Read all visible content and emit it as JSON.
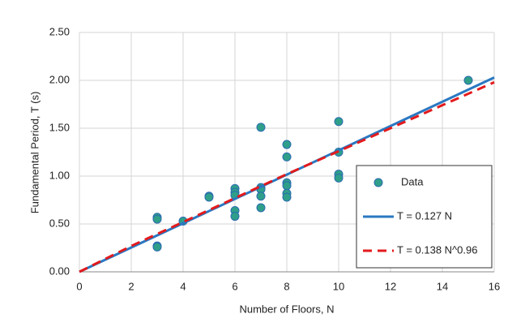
{
  "chart_data": {
    "type": "scatter",
    "xlabel": "Number of Floors, N",
    "ylabel": "Fundamental Period, T (s)",
    "xlim": [
      0,
      16
    ],
    "xticks": [
      0,
      2,
      4,
      6,
      8,
      10,
      12,
      14,
      16
    ],
    "ylim": [
      0,
      2.5
    ],
    "yticks": [
      {
        "value": 0,
        "label": "0.00"
      },
      {
        "value": 0.5,
        "label": "0.50"
      },
      {
        "value": 1,
        "label": "1.00"
      },
      {
        "value": 1.5,
        "label": "1.50"
      },
      {
        "value": 2,
        "label": "2.00"
      },
      {
        "value": 2.5,
        "label": "2.50"
      }
    ],
    "grid": true,
    "legend": "lower right",
    "series": [
      {
        "name": "Data",
        "type": "scatter",
        "color": "#2f9f8a",
        "x": [
          3,
          3,
          3,
          3,
          4,
          5,
          5,
          6,
          6,
          6,
          6,
          6,
          7,
          7,
          7,
          7,
          7,
          8,
          8,
          8,
          8,
          8,
          8,
          10,
          10,
          10,
          10,
          15
        ],
        "values": [
          0.57,
          0.55,
          0.27,
          0.26,
          0.53,
          0.79,
          0.78,
          0.87,
          0.83,
          0.8,
          0.64,
          0.58,
          1.51,
          0.88,
          0.86,
          0.79,
          0.67,
          1.33,
          1.2,
          0.93,
          0.9,
          0.82,
          0.78,
          1.57,
          1.25,
          1.02,
          0.98,
          2.0
        ]
      },
      {
        "name": "T = 0.127 N",
        "type": "line",
        "color": "#2a78c2",
        "dashed": false,
        "x": [
          0,
          16
        ],
        "values": [
          0,
          2.03
        ]
      },
      {
        "name": "T = 0.138 N^0.96",
        "type": "line",
        "color": "#e31a1c",
        "dashed": true,
        "x": [
          0,
          2,
          4,
          6,
          8,
          10,
          12,
          14,
          16
        ],
        "values": [
          0,
          0.27,
          0.52,
          0.77,
          1.02,
          1.26,
          1.5,
          1.74,
          1.98
        ]
      }
    ]
  }
}
